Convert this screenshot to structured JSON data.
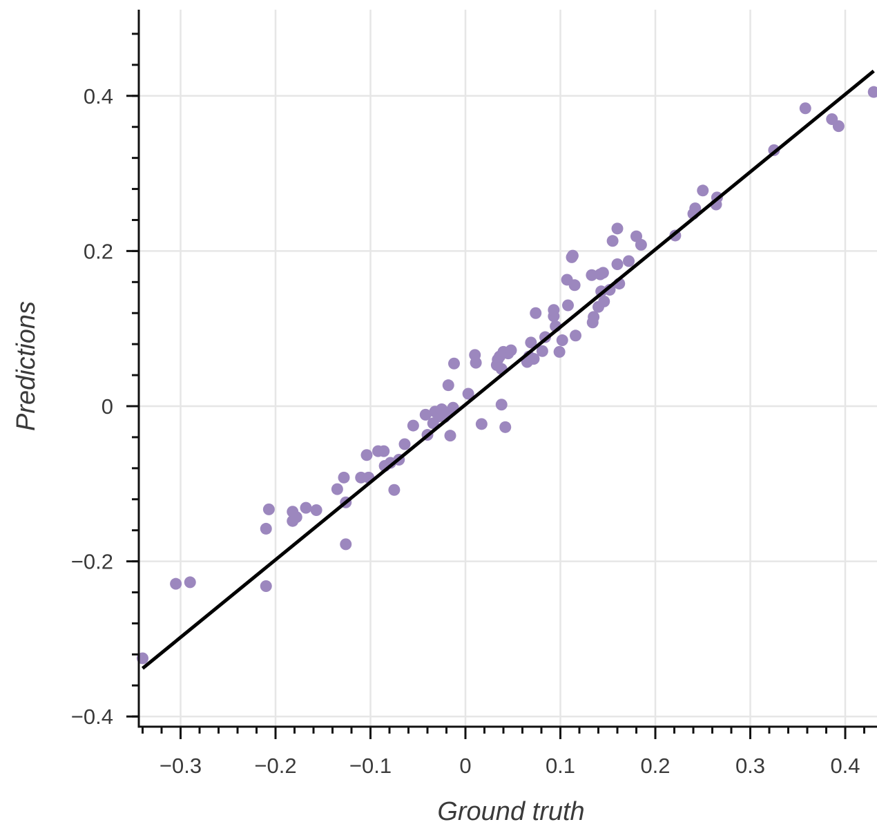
{
  "chart_data": {
    "type": "scatter",
    "title": "",
    "xlabel": "Ground truth",
    "ylabel": "Predictions",
    "xlim": [
      -0.34,
      0.43
    ],
    "ylim": [
      -0.41,
      0.51
    ],
    "grid": true,
    "x_ticks": [
      -0.3,
      -0.2,
      -0.1,
      0,
      0.1,
      0.2,
      0.3,
      0.4
    ],
    "x_tick_labels": [
      "−0.3",
      "−0.2",
      "−0.1",
      "0",
      "0.1",
      "0.2",
      "0.3",
      "0.4"
    ],
    "y_ticks": [
      -0.4,
      -0.2,
      0,
      0.2,
      0.4
    ],
    "y_tick_labels": [
      "−0.4",
      "−0.2",
      "0",
      "0.2",
      "0.4"
    ],
    "x_minor_step": 0.02,
    "y_minor_step": 0.04,
    "colors": {
      "points": "#9c87be",
      "line": "#000000",
      "grid": "#e6e6e6",
      "axis": "#111111"
    },
    "reference_line": {
      "x": [
        -0.34,
        0.43
      ],
      "y": [
        -0.338,
        0.432
      ]
    },
    "points": [
      [
        -0.34,
        -0.325
      ],
      [
        -0.305,
        -0.229
      ],
      [
        -0.29,
        -0.227
      ],
      [
        -0.21,
        -0.158
      ],
      [
        -0.207,
        -0.133
      ],
      [
        -0.21,
        -0.232
      ],
      [
        -0.182,
        -0.148
      ],
      [
        -0.182,
        -0.136
      ],
      [
        -0.178,
        -0.143
      ],
      [
        -0.168,
        -0.131
      ],
      [
        -0.157,
        -0.134
      ],
      [
        -0.135,
        -0.107
      ],
      [
        -0.128,
        -0.092
      ],
      [
        -0.126,
        -0.124
      ],
      [
        -0.126,
        -0.178
      ],
      [
        -0.11,
        -0.092
      ],
      [
        -0.102,
        -0.092
      ],
      [
        -0.104,
        -0.063
      ],
      [
        -0.092,
        -0.058
      ],
      [
        -0.086,
        -0.058
      ],
      [
        -0.085,
        -0.077
      ],
      [
        -0.079,
        -0.073
      ],
      [
        -0.075,
        -0.108
      ],
      [
        -0.07,
        -0.069
      ],
      [
        -0.064,
        -0.049
      ],
      [
        -0.055,
        -0.025
      ],
      [
        -0.042,
        -0.011
      ],
      [
        -0.04,
        -0.037
      ],
      [
        -0.034,
        -0.022
      ],
      [
        -0.032,
        -0.007
      ],
      [
        -0.028,
        -0.013
      ],
      [
        -0.025,
        -0.004
      ],
      [
        -0.022,
        -0.014
      ],
      [
        -0.02,
        -0.008
      ],
      [
        -0.018,
        0.027
      ],
      [
        -0.016,
        -0.038
      ],
      [
        -0.013,
        -0.002
      ],
      [
        -0.012,
        0.055
      ],
      [
        0.003,
        0.016
      ],
      [
        0.01,
        0.066
      ],
      [
        0.011,
        0.056
      ],
      [
        0.017,
        -0.023
      ],
      [
        0.033,
        0.053
      ],
      [
        0.034,
        0.06
      ],
      [
        0.036,
        0.064
      ],
      [
        0.038,
        0.048
      ],
      [
        0.038,
        0.002
      ],
      [
        0.04,
        0.07
      ],
      [
        0.042,
        -0.027
      ],
      [
        0.045,
        0.068
      ],
      [
        0.048,
        0.072
      ],
      [
        0.065,
        0.057
      ],
      [
        0.067,
        0.064
      ],
      [
        0.069,
        0.082
      ],
      [
        0.072,
        0.061
      ],
      [
        0.074,
        0.12
      ],
      [
        0.081,
        0.071
      ],
      [
        0.084,
        0.089
      ],
      [
        0.093,
        0.116
      ],
      [
        0.093,
        0.124
      ],
      [
        0.095,
        0.103
      ],
      [
        0.099,
        0.07
      ],
      [
        0.102,
        0.085
      ],
      [
        0.107,
        0.163
      ],
      [
        0.108,
        0.13
      ],
      [
        0.112,
        0.192
      ],
      [
        0.113,
        0.194
      ],
      [
        0.115,
        0.156
      ],
      [
        0.116,
        0.091
      ],
      [
        0.133,
        0.169
      ],
      [
        0.134,
        0.108
      ],
      [
        0.135,
        0.115
      ],
      [
        0.14,
        0.128
      ],
      [
        0.142,
        0.17
      ],
      [
        0.143,
        0.148
      ],
      [
        0.145,
        0.172
      ],
      [
        0.146,
        0.135
      ],
      [
        0.152,
        0.15
      ],
      [
        0.155,
        0.213
      ],
      [
        0.16,
        0.183
      ],
      [
        0.16,
        0.229
      ],
      [
        0.162,
        0.158
      ],
      [
        0.172,
        0.187
      ],
      [
        0.18,
        0.219
      ],
      [
        0.185,
        0.208
      ],
      [
        0.221,
        0.22
      ],
      [
        0.24,
        0.248
      ],
      [
        0.242,
        0.255
      ],
      [
        0.25,
        0.278
      ],
      [
        0.264,
        0.26
      ],
      [
        0.265,
        0.269
      ],
      [
        0.325,
        0.33
      ],
      [
        0.358,
        0.384
      ],
      [
        0.386,
        0.37
      ],
      [
        0.393,
        0.361
      ],
      [
        0.43,
        0.405
      ]
    ]
  }
}
